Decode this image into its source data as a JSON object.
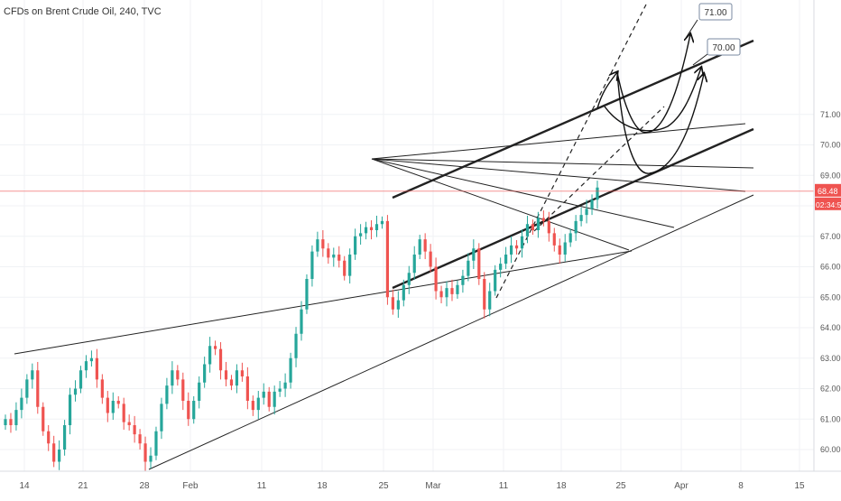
{
  "chart_data": {
    "type": "candlestick",
    "title": "CFDs on Brent Crude Oil, 240, TVC",
    "x_tick_labels": [
      "14",
      "21",
      "28",
      "Feb",
      "11",
      "18",
      "25",
      "Mar",
      "11",
      "18",
      "25",
      "Apr",
      "8",
      "15"
    ],
    "y_tick_labels": [
      "60.00",
      "61.00",
      "62.00",
      "63.00",
      "64.00",
      "65.00",
      "66.00",
      "67.00",
      "68.00",
      "69.00",
      "70.00",
      "71.00"
    ],
    "ylim": [
      59.5,
      71.6
    ],
    "last_price": "68.48",
    "countdown": "02:34:50",
    "annotations": [
      "71.00",
      "70.00"
    ],
    "colors": {
      "up": "#26a69a",
      "down": "#ef5350",
      "price_line": "#ef5350",
      "price_badge": "#ef5350"
    },
    "grid": true,
    "closes": [
      61.0,
      60.8,
      61.3,
      61.7,
      62.3,
      62.6,
      61.4,
      60.6,
      60.2,
      59.6,
      60.0,
      60.8,
      61.8,
      62.0,
      62.6,
      62.9,
      63.0,
      62.3,
      61.7,
      61.2,
      61.6,
      61.5,
      60.9,
      60.8,
      60.5,
      60.2,
      59.6,
      59.8,
      60.6,
      61.5,
      62.1,
      62.6,
      62.3,
      61.6,
      61.0,
      61.6,
      62.2,
      62.8,
      63.4,
      63.3,
      62.6,
      62.3,
      62.1,
      62.6,
      62.4,
      61.6,
      61.3,
      61.7,
      61.9,
      61.4,
      61.9,
      62.0,
      62.2,
      63.0,
      63.8,
      64.6,
      65.6,
      66.5,
      66.9,
      66.6,
      66.3,
      66.4,
      66.2,
      65.7,
      66.4,
      67.0,
      67.1,
      67.3,
      67.2,
      67.4,
      67.5,
      65.0,
      64.6,
      64.9,
      65.4,
      65.8,
      66.4,
      66.9,
      66.5,
      66.0,
      65.2,
      65.0,
      65.3,
      65.1,
      65.4,
      65.7,
      66.2,
      66.6,
      65.6,
      64.6,
      65.2,
      65.9,
      66.1,
      66.4,
      66.7,
      66.6,
      67.0,
      67.4,
      67.2,
      67.6,
      67.5,
      67.1,
      66.7,
      66.4,
      66.8,
      67.1,
      67.5,
      67.7,
      67.9,
      68.2,
      68.6
    ]
  }
}
